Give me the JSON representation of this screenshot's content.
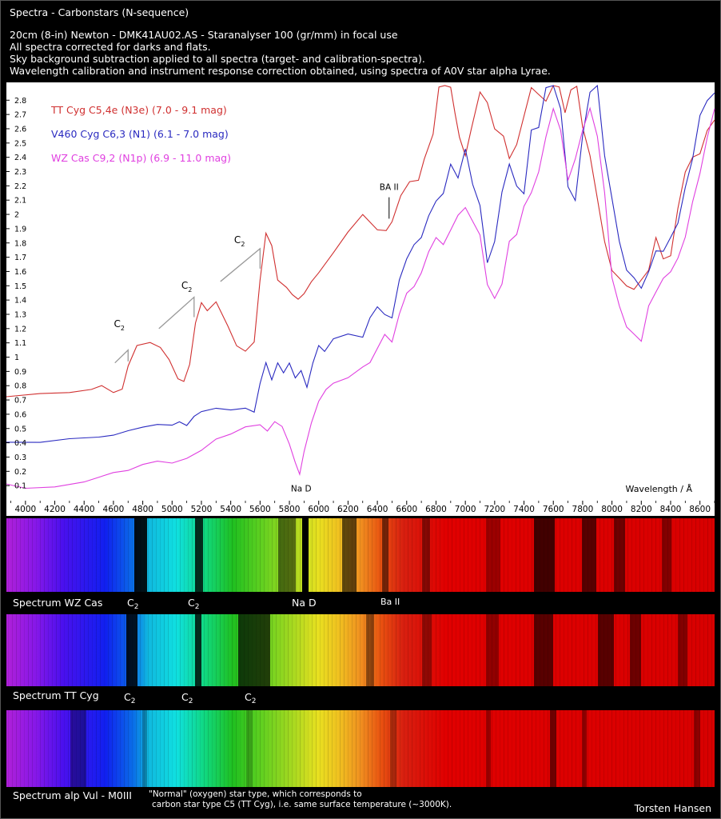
{
  "header": {
    "title": "Spectra - Carbonstars (N-sequence)",
    "lines": [
      "20cm (8-in) Newton   -  DMK41AU02.AS  -  Staranalyser 100 (gr/mm) in focal use",
      "All spectra corrected for darks and flats.",
      "Sky background subtraction applied to all spectra (target- and calibration-spectra).",
      "Wavelength calibration and instrument response correction obtained, using spectra of A0V star alpha Lyrae."
    ]
  },
  "chart_data": {
    "type": "line",
    "xlabel": "Wavelength / Å",
    "ylabel": "",
    "xlim": [
      3870,
      8700
    ],
    "ylim": [
      0,
      2.88
    ],
    "x_ticks": [
      4000,
      4200,
      4400,
      4600,
      4800,
      5000,
      5200,
      5400,
      5600,
      5800,
      6000,
      6200,
      6400,
      6600,
      6800,
      7000,
      7200,
      7400,
      7600,
      7800,
      8000,
      8200,
      8400,
      8600
    ],
    "y_ticks": [
      0.1,
      0.2,
      0.3,
      0.4,
      0.5,
      0.6,
      0.7,
      0.8,
      0.9,
      1,
      1.1,
      1.2,
      1.3,
      1.4,
      1.5,
      1.6,
      1.7,
      1.8,
      1.9,
      2,
      2.1,
      2.2,
      2.3,
      2.4,
      2.5,
      2.6,
      2.7,
      2.8
    ],
    "grid": false,
    "legend_position": "top-left",
    "series": [
      {
        "name": "TT Cyg   C5,4e (N3e)   (7.0 - 9.1 mag)",
        "color": "#d03030",
        "x": [
          3870,
          4100,
          4300,
          4450,
          4520,
          4600,
          4660,
          4700,
          4760,
          4850,
          4920,
          4980,
          5040,
          5080,
          5120,
          5160,
          5200,
          5240,
          5300,
          5380,
          5440,
          5500,
          5560,
          5600,
          5640,
          5680,
          5720,
          5780,
          5820,
          5860,
          5900,
          5950,
          6000,
          6100,
          6200,
          6300,
          6400,
          6460,
          6500,
          6560,
          6620,
          6680,
          6720,
          6780,
          6820,
          6860,
          6900,
          6930,
          6960,
          7000,
          7040,
          7100,
          7150,
          7200,
          7260,
          7300,
          7350,
          7400,
          7450,
          7500,
          7550,
          7600,
          7640,
          7680,
          7720,
          7760,
          7800,
          7850,
          7900,
          7950,
          8000,
          8050,
          8100,
          8150,
          8200,
          8250,
          8300,
          8350,
          8400,
          8450,
          8500,
          8550,
          8600,
          8650,
          8700
        ],
        "y": [
          0.73,
          0.74,
          0.74,
          0.77,
          0.79,
          0.76,
          0.77,
          0.95,
          1.07,
          1.11,
          1.08,
          0.97,
          0.86,
          0.82,
          0.95,
          1.25,
          1.37,
          1.33,
          1.38,
          1.23,
          1.07,
          1.05,
          1.1,
          1.55,
          1.86,
          1.78,
          1.55,
          1.48,
          1.45,
          1.4,
          1.44,
          1.52,
          1.58,
          1.72,
          1.87,
          2.0,
          1.9,
          1.88,
          1.96,
          2.12,
          2.24,
          2.23,
          2.4,
          2.55,
          2.9,
          2.95,
          2.88,
          2.7,
          2.55,
          2.4,
          2.6,
          2.85,
          2.78,
          2.6,
          2.55,
          2.4,
          2.5,
          2.7,
          2.9,
          2.85,
          2.8,
          2.95,
          2.9,
          2.7,
          2.88,
          2.9,
          2.6,
          2.4,
          2.1,
          1.8,
          1.6,
          1.55,
          1.5,
          1.48,
          1.55,
          1.62,
          1.85,
          1.7,
          1.72,
          2.05,
          2.3,
          2.4,
          2.42,
          2.58,
          2.65
        ]
      },
      {
        "name": "V460 Cyg   C6,3 (N1)   (6.1 - 7.0 mag)",
        "color": "#2a2ac0",
        "x": [
          3870,
          4100,
          4300,
          4500,
          4600,
          4700,
          4800,
          4900,
          5000,
          5050,
          5100,
          5150,
          5200,
          5300,
          5400,
          5500,
          5560,
          5600,
          5640,
          5680,
          5720,
          5760,
          5800,
          5840,
          5880,
          5920,
          5960,
          6000,
          6040,
          6100,
          6200,
          6300,
          6350,
          6400,
          6450,
          6500,
          6550,
          6600,
          6650,
          6700,
          6750,
          6800,
          6850,
          6900,
          6950,
          7000,
          7050,
          7100,
          7150,
          7200,
          7250,
          7300,
          7350,
          7400,
          7450,
          7500,
          7550,
          7600,
          7650,
          7700,
          7750,
          7800,
          7850,
          7900,
          7950,
          8000,
          8050,
          8100,
          8150,
          8200,
          8250,
          8300,
          8350,
          8400,
          8450,
          8500,
          8550,
          8600,
          8650,
          8700
        ],
        "y": [
          0.4,
          0.41,
          0.42,
          0.43,
          0.45,
          0.49,
          0.52,
          0.54,
          0.53,
          0.55,
          0.52,
          0.58,
          0.61,
          0.63,
          0.62,
          0.64,
          0.62,
          0.82,
          0.95,
          0.85,
          0.96,
          0.88,
          0.97,
          0.85,
          0.9,
          0.8,
          0.95,
          1.08,
          1.05,
          1.12,
          1.15,
          1.13,
          1.27,
          1.35,
          1.3,
          1.28,
          1.55,
          1.7,
          1.8,
          1.85,
          2.0,
          2.1,
          2.15,
          2.35,
          2.25,
          2.45,
          2.2,
          2.05,
          1.65,
          1.8,
          2.15,
          2.35,
          2.2,
          2.15,
          2.6,
          2.62,
          2.9,
          2.95,
          2.75,
          2.2,
          2.1,
          2.55,
          2.85,
          2.95,
          2.4,
          2.1,
          1.8,
          1.6,
          1.55,
          1.48,
          1.6,
          1.75,
          1.75,
          1.85,
          1.95,
          2.2,
          2.4,
          2.7,
          2.8,
          2.85
        ]
      },
      {
        "name": "WZ Cas   C9,2 (N1p)   (6.9 - 11.0 mag)",
        "color": "#e040e0",
        "x": [
          3870,
          4000,
          4200,
          4400,
          4600,
          4700,
          4800,
          4900,
          5000,
          5100,
          5200,
          5300,
          5400,
          5500,
          5600,
          5650,
          5700,
          5750,
          5800,
          5840,
          5870,
          5900,
          5950,
          6000,
          6050,
          6100,
          6200,
          6300,
          6350,
          6400,
          6450,
          6500,
          6550,
          6600,
          6650,
          6700,
          6750,
          6800,
          6850,
          6900,
          6950,
          7000,
          7050,
          7100,
          7150,
          7200,
          7250,
          7300,
          7350,
          7400,
          7450,
          7500,
          7550,
          7600,
          7650,
          7700,
          7750,
          7800,
          7850,
          7900,
          7950,
          8000,
          8050,
          8100,
          8150,
          8200,
          8250,
          8300,
          8350,
          8400,
          8450,
          8500,
          8550,
          8600,
          8650,
          8700
        ],
        "y": [
          0.1,
          0.09,
          0.1,
          0.12,
          0.18,
          0.2,
          0.25,
          0.28,
          0.27,
          0.3,
          0.35,
          0.42,
          0.45,
          0.5,
          0.52,
          0.48,
          0.55,
          0.52,
          0.4,
          0.25,
          0.18,
          0.35,
          0.55,
          0.7,
          0.78,
          0.82,
          0.85,
          0.92,
          0.95,
          1.05,
          1.15,
          1.1,
          1.3,
          1.45,
          1.5,
          1.6,
          1.75,
          1.85,
          1.8,
          1.9,
          2.0,
          2.05,
          1.95,
          1.85,
          1.5,
          1.4,
          1.5,
          1.8,
          1.85,
          2.05,
          2.15,
          2.3,
          2.55,
          2.75,
          2.6,
          2.25,
          2.4,
          2.6,
          2.75,
          2.55,
          2.15,
          1.55,
          1.35,
          1.2,
          1.15,
          1.1,
          1.35,
          1.45,
          1.55,
          1.6,
          1.7,
          1.85,
          2.1,
          2.3,
          2.55,
          2.75
        ]
      }
    ],
    "annotations": [
      {
        "text": "BA II",
        "x": 6480,
        "y": 2.17
      },
      {
        "text": "Na D",
        "x": 5880,
        "y": 0.06
      },
      {
        "text": "C",
        "sub": "2",
        "x": 4640,
        "y": 1.21
      },
      {
        "text": "C",
        "sub": "2",
        "x": 5100,
        "y": 1.48
      },
      {
        "text": "C",
        "sub": "2",
        "x": 5460,
        "y": 1.8
      }
    ]
  },
  "strips": [
    {
      "label": "Spectrum WZ Cas",
      "markers": [
        {
          "text": "C",
          "sub": "2"
        },
        {
          "text": "C",
          "sub": "2"
        },
        {
          "text": "Na D"
        },
        {
          "text": "Ba II"
        }
      ]
    },
    {
      "label": "Spectrum TT Cyg",
      "markers": [
        {
          "text": "C",
          "sub": "2"
        },
        {
          "text": "C",
          "sub": "2"
        },
        {
          "text": "C",
          "sub": "2"
        }
      ]
    },
    {
      "label": "Spectrum alp Vul - M0III",
      "note": [
        "\"Normal\" (oxygen) star type, which corresponds to",
        "carbon star type C5 (TT Cyg), i.e. same surface temperature (~3000K)."
      ]
    }
  ],
  "author": "Torsten Hansen"
}
